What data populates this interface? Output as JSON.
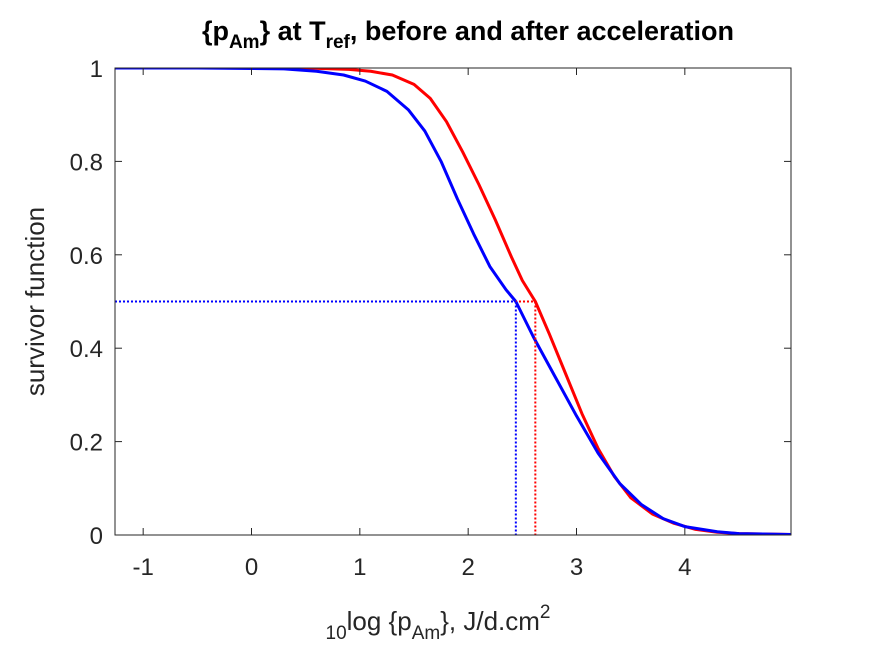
{
  "chart_data": {
    "type": "line",
    "title": {
      "parts": [
        {
          "text": "{p",
          "sub": false
        },
        {
          "text": "Am",
          "sub": true
        },
        {
          "text": "} at T",
          "sub": false
        },
        {
          "text": "ref",
          "sub": true
        },
        {
          "text": ", before and after acceleration",
          "sub": false
        }
      ]
    },
    "xlabel": {
      "parts": [
        {
          "text": "10",
          "style": "sub"
        },
        {
          "text": "log {p",
          "style": "normal"
        },
        {
          "text": "Am",
          "style": "sub"
        },
        {
          "text": "}, J/d.cm",
          "style": "normal"
        },
        {
          "text": "2",
          "style": "sup"
        }
      ]
    },
    "ylabel": "survivor function",
    "xlim": [
      -1.26,
      4.98
    ],
    "ylim": [
      0,
      1
    ],
    "xticks": [
      -1,
      0,
      1,
      2,
      3,
      4
    ],
    "xtick_labels": [
      "-1",
      "0",
      "1",
      "2",
      "3",
      "4"
    ],
    "yticks": [
      0,
      0.2,
      0.4,
      0.6,
      0.8,
      1
    ],
    "ytick_labels": [
      "0",
      "0.2",
      "0.4",
      "0.6",
      "0.8",
      "1"
    ],
    "grid": false,
    "series": [
      {
        "color": "#ff0000",
        "x": [
          -1.26,
          0.0,
          0.5,
          0.9,
          1.1,
          1.3,
          1.5,
          1.65,
          1.8,
          1.95,
          2.1,
          2.25,
          2.4,
          2.5,
          2.62,
          2.75,
          2.9,
          3.05,
          3.2,
          3.35,
          3.5,
          3.7,
          3.9,
          4.1,
          4.3,
          4.5,
          4.98
        ],
        "y": [
          1.0,
          1.0,
          1.0,
          0.997,
          0.993,
          0.985,
          0.965,
          0.935,
          0.885,
          0.82,
          0.75,
          0.675,
          0.595,
          0.545,
          0.5,
          0.43,
          0.345,
          0.26,
          0.185,
          0.125,
          0.08,
          0.045,
          0.025,
          0.012,
          0.006,
          0.003,
          0.001
        ]
      },
      {
        "color": "#0000ff",
        "x": [
          -1.26,
          -0.5,
          0.0,
          0.3,
          0.6,
          0.85,
          1.05,
          1.25,
          1.45,
          1.6,
          1.75,
          1.9,
          2.05,
          2.2,
          2.35,
          2.44,
          2.6,
          2.8,
          3.0,
          3.2,
          3.4,
          3.6,
          3.8,
          4.0,
          4.3,
          4.5,
          4.98
        ],
        "y": [
          1.0,
          1.0,
          0.999,
          0.998,
          0.993,
          0.985,
          0.972,
          0.95,
          0.91,
          0.865,
          0.8,
          0.72,
          0.645,
          0.575,
          0.525,
          0.5,
          0.425,
          0.34,
          0.255,
          0.175,
          0.11,
          0.065,
          0.035,
          0.018,
          0.007,
          0.003,
          0.001
        ]
      }
    ],
    "median_markers": [
      {
        "color": "#ff0000",
        "x": 2.62,
        "y": 0.5
      },
      {
        "color": "#0000ff",
        "x": 2.44,
        "y": 0.5
      }
    ]
  }
}
